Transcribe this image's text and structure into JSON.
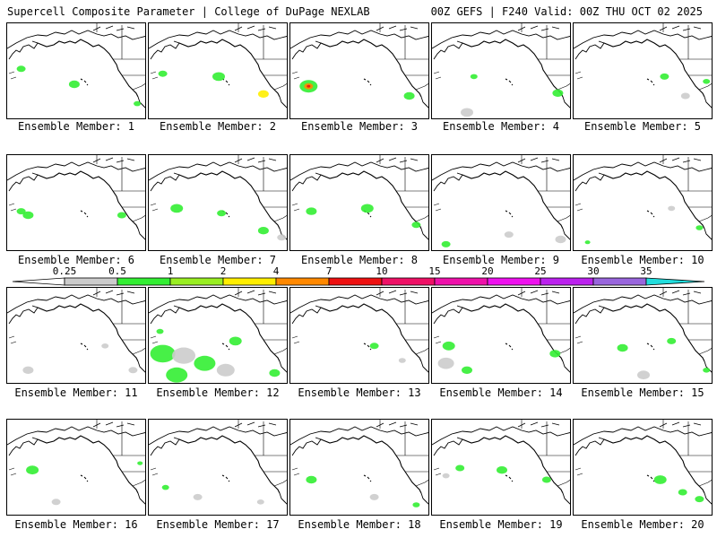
{
  "header": {
    "title": "Supercell Composite Parameter | College of DuPage NEXLAB",
    "run_info": "00Z GEFS | F240 Valid: 00Z THU OCT 02 2025"
  },
  "member_prefix": "Ensemble Member:",
  "members": [
    {
      "id": 1,
      "label": "Ensemble Member: 1",
      "blobs": [
        [
          0.1,
          0.47,
          5,
          "#33ee33"
        ],
        [
          0.48,
          0.63,
          6,
          "#33ee33"
        ],
        [
          0.93,
          0.83,
          4,
          "#33ee33"
        ]
      ]
    },
    {
      "id": 2,
      "label": "Ensemble Member: 2",
      "blobs": [
        [
          0.1,
          0.52,
          5,
          "#33ee33"
        ],
        [
          0.5,
          0.55,
          7,
          "#33ee33"
        ],
        [
          0.82,
          0.73,
          6,
          "#ffee00"
        ]
      ]
    },
    {
      "id": 3,
      "label": "Ensemble Member: 3",
      "blobs": [
        [
          0.13,
          0.65,
          10,
          "#33ee33"
        ],
        [
          0.13,
          0.65,
          5,
          "#ff8800"
        ],
        [
          0.13,
          0.65,
          2,
          "#ee1111"
        ],
        [
          0.85,
          0.75,
          6,
          "#33ee33"
        ]
      ]
    },
    {
      "id": 4,
      "label": "Ensemble Member: 4",
      "blobs": [
        [
          0.3,
          0.55,
          4,
          "#33ee33"
        ],
        [
          0.9,
          0.72,
          6,
          "#33ee33"
        ],
        [
          0.25,
          0.92,
          7,
          "#cccccc"
        ]
      ]
    },
    {
      "id": 5,
      "label": "Ensemble Member: 5",
      "blobs": [
        [
          0.65,
          0.55,
          5,
          "#33ee33"
        ],
        [
          0.8,
          0.75,
          5,
          "#cccccc"
        ],
        [
          0.95,
          0.6,
          4,
          "#33ee33"
        ]
      ]
    },
    {
      "id": 6,
      "label": "Ensemble Member: 6",
      "blobs": [
        [
          0.15,
          0.62,
          6,
          "#33ee33"
        ],
        [
          0.1,
          0.58,
          5,
          "#33ee33"
        ],
        [
          0.82,
          0.62,
          5,
          "#33ee33"
        ]
      ]
    },
    {
      "id": 7,
      "label": "Ensemble Member: 7",
      "blobs": [
        [
          0.2,
          0.55,
          7,
          "#33ee33"
        ],
        [
          0.52,
          0.6,
          5,
          "#33ee33"
        ],
        [
          0.82,
          0.78,
          6,
          "#33ee33"
        ],
        [
          0.95,
          0.85,
          5,
          "#cccccc"
        ]
      ]
    },
    {
      "id": 8,
      "label": "Ensemble Member: 8",
      "blobs": [
        [
          0.15,
          0.58,
          6,
          "#33ee33"
        ],
        [
          0.55,
          0.55,
          7,
          "#33ee33"
        ],
        [
          0.9,
          0.72,
          5,
          "#33ee33"
        ]
      ]
    },
    {
      "id": 9,
      "label": "Ensemble Member: 9",
      "blobs": [
        [
          0.1,
          0.92,
          5,
          "#33ee33"
        ],
        [
          0.55,
          0.82,
          5,
          "#cccccc"
        ],
        [
          0.92,
          0.87,
          6,
          "#cccccc"
        ]
      ]
    },
    {
      "id": 10,
      "label": "Ensemble Member: 10",
      "blobs": [
        [
          0.9,
          0.75,
          4,
          "#33ee33"
        ],
        [
          0.7,
          0.55,
          4,
          "#cccccc"
        ],
        [
          0.1,
          0.9,
          3,
          "#33ee33"
        ]
      ]
    },
    {
      "id": 11,
      "label": "Ensemble Member: 11",
      "blobs": [
        [
          0.15,
          0.85,
          6,
          "#cccccc"
        ],
        [
          0.9,
          0.85,
          5,
          "#cccccc"
        ],
        [
          0.7,
          0.6,
          4,
          "#cccccc"
        ]
      ]
    },
    {
      "id": 12,
      "label": "Ensemble Member: 12",
      "blobs": [
        [
          0.1,
          0.68,
          14,
          "#33ee33"
        ],
        [
          0.25,
          0.7,
          13,
          "#cccccc"
        ],
        [
          0.4,
          0.78,
          12,
          "#33ee33"
        ],
        [
          0.2,
          0.9,
          12,
          "#33ee33"
        ],
        [
          0.55,
          0.85,
          10,
          "#cccccc"
        ],
        [
          0.62,
          0.55,
          7,
          "#33ee33"
        ],
        [
          0.9,
          0.88,
          6,
          "#33ee33"
        ],
        [
          0.08,
          0.45,
          4,
          "#33ee33"
        ]
      ]
    },
    {
      "id": 13,
      "label": "Ensemble Member: 13",
      "blobs": [
        [
          0.6,
          0.6,
          5,
          "#33ee33"
        ],
        [
          0.8,
          0.75,
          4,
          "#cccccc"
        ]
      ]
    },
    {
      "id": 14,
      "label": "Ensemble Member: 14",
      "blobs": [
        [
          0.12,
          0.6,
          7,
          "#33ee33"
        ],
        [
          0.1,
          0.78,
          9,
          "#cccccc"
        ],
        [
          0.25,
          0.85,
          6,
          "#33ee33"
        ],
        [
          0.88,
          0.68,
          6,
          "#33ee33"
        ]
      ]
    },
    {
      "id": 15,
      "label": "Ensemble Member: 15",
      "blobs": [
        [
          0.35,
          0.62,
          6,
          "#33ee33"
        ],
        [
          0.7,
          0.55,
          5,
          "#33ee33"
        ],
        [
          0.5,
          0.9,
          7,
          "#cccccc"
        ],
        [
          0.95,
          0.85,
          4,
          "#33ee33"
        ]
      ]
    },
    {
      "id": 16,
      "label": "Ensemble Member: 16",
      "blobs": [
        [
          0.18,
          0.52,
          7,
          "#33ee33"
        ],
        [
          0.35,
          0.85,
          5,
          "#cccccc"
        ],
        [
          0.95,
          0.45,
          3,
          "#33ee33"
        ]
      ]
    },
    {
      "id": 17,
      "label": "Ensemble Member: 17",
      "blobs": [
        [
          0.35,
          0.8,
          5,
          "#cccccc"
        ],
        [
          0.12,
          0.7,
          4,
          "#33ee33"
        ],
        [
          0.8,
          0.85,
          4,
          "#cccccc"
        ]
      ]
    },
    {
      "id": 18,
      "label": "Ensemble Member: 18",
      "blobs": [
        [
          0.15,
          0.62,
          6,
          "#33ee33"
        ],
        [
          0.6,
          0.8,
          5,
          "#cccccc"
        ],
        [
          0.9,
          0.88,
          4,
          "#33ee33"
        ]
      ]
    },
    {
      "id": 19,
      "label": "Ensemble Member: 19",
      "blobs": [
        [
          0.2,
          0.5,
          5,
          "#33ee33"
        ],
        [
          0.5,
          0.52,
          6,
          "#33ee33"
        ],
        [
          0.82,
          0.62,
          5,
          "#33ee33"
        ],
        [
          0.1,
          0.58,
          4,
          "#cccccc"
        ]
      ]
    },
    {
      "id": 20,
      "label": "Ensemble Member: 20",
      "blobs": [
        [
          0.62,
          0.62,
          7,
          "#33ee33"
        ],
        [
          0.78,
          0.75,
          5,
          "#33ee33"
        ],
        [
          0.9,
          0.82,
          5,
          "#33ee33"
        ]
      ]
    }
  ],
  "color_scale": {
    "labels": [
      "0.25",
      "0.5",
      "1",
      "2",
      "4",
      "7",
      "10",
      "15",
      "20",
      "25",
      "30",
      "35"
    ],
    "colors": [
      "#cccccc",
      "#33ee33",
      "#99ee22",
      "#ffee00",
      "#ff8800",
      "#ee1111",
      "#ee1166",
      "#ee11aa",
      "#ee11ee",
      "#bb22ee",
      "#9966dd",
      "#22dddd"
    ]
  }
}
